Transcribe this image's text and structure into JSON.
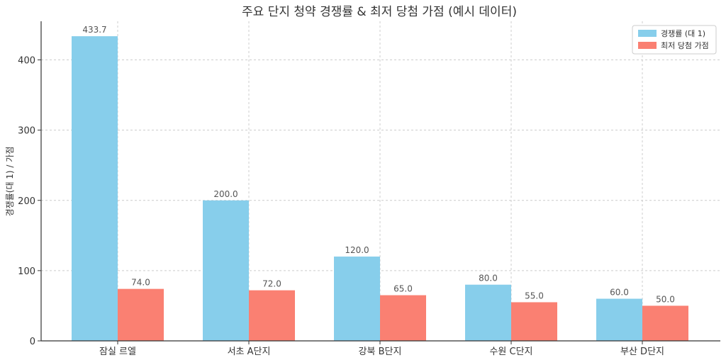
{
  "chart_data": {
    "type": "bar",
    "title": "주요 단지 청약 경쟁률 & 최저 당첨 가점 (예시 데이터)",
    "xlabel": "",
    "ylabel": "경쟁률(대 1) / 가점",
    "categories": [
      "잠실 르엘",
      "서초 A단지",
      "강북 B단지",
      "수원 C단지",
      "부산 D단지"
    ],
    "series": [
      {
        "name": "경쟁률 (대 1)",
        "values": [
          433.7,
          200.0,
          120.0,
          80.0,
          60.0
        ],
        "color": "#87CEEB"
      },
      {
        "name": "최저 당첨 가점",
        "values": [
          74.0,
          72.0,
          65.0,
          55.0,
          50.0
        ],
        "color": "#FA8072"
      }
    ],
    "ylim": [
      0,
      455
    ],
    "yticks": [
      0,
      100,
      200,
      300,
      400
    ],
    "grid": true,
    "legend_position": "top-right"
  }
}
